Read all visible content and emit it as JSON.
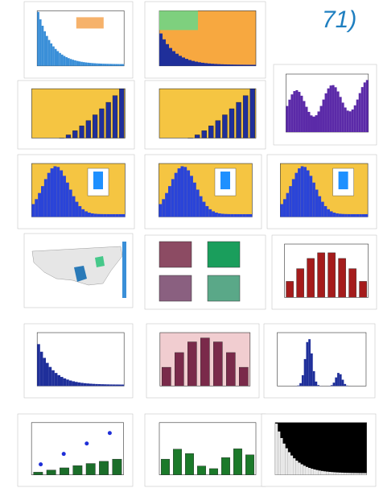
{
  "slide": {
    "page_number": "71)"
  }
}
